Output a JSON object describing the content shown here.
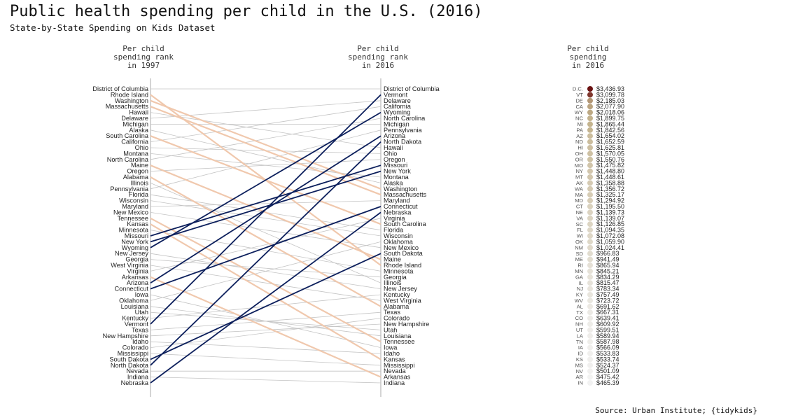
{
  "title": "Public health spending per child in the U.S. (2016)",
  "subtitle": "State-by-State Spending on Kids Dataset",
  "source": "Source: Urban Institute; {tidykids}",
  "headers": {
    "rank1997": [
      "Per child",
      "spending rank",
      "in 1997"
    ],
    "rank2016": [
      "Per child",
      "spending rank",
      "in 2016"
    ],
    "spend2016": [
      "Per child",
      "spending",
      "in 2016"
    ]
  },
  "colors": {
    "decline": "#f0c8ad",
    "rise": "#0c1f5c",
    "other": "#c4c4c4",
    "axis": "#aaaaaa",
    "dot_high": "#6b1212",
    "dot_mid": "#c1b089",
    "dot_low": "#f2f2f2"
  },
  "chart_data": {
    "type": "slope",
    "rank_1997": [
      "District of Columbia",
      "Rhode Island",
      "Washington",
      "Massachusetts",
      "Hawaii",
      "Delaware",
      "Michigan",
      "Alaska",
      "South Carolina",
      "California",
      "Ohio",
      "Montana",
      "North Carolina",
      "Maine",
      "Oregon",
      "Alabama",
      "Illinois",
      "Pennsylvania",
      "Florida",
      "Wisconsin",
      "Maryland",
      "New Mexico",
      "Tennessee",
      "Kansas",
      "Minnesota",
      "Missouri",
      "New York",
      "Wyoming",
      "New Jersey",
      "Georgia",
      "West Virginia",
      "Virginia",
      "Arkansas",
      "Arizona",
      "Connecticut",
      "Iowa",
      "Oklahoma",
      "Louisiana",
      "Utah",
      "Kentucky",
      "Vermont",
      "Texas",
      "New Hampshire",
      "Idaho",
      "Colorado",
      "Mississippi",
      "South Dakota",
      "North Dakota",
      "Nevada",
      "Indiana",
      "Nebraska"
    ],
    "rank_2016": [
      "District of Columbia",
      "Vermont",
      "Delaware",
      "California",
      "Wyoming",
      "North Carolina",
      "Michigan",
      "Pennsylvania",
      "Arizona",
      "North Dakota",
      "Hawaii",
      "Ohio",
      "Oregon",
      "Missouri",
      "New York",
      "Montana",
      "Alaska",
      "Washington",
      "Massachusetts",
      "Maryland",
      "Connecticut",
      "Nebraska",
      "Virginia",
      "South Carolina",
      "Florida",
      "Wisconsin",
      "Oklahoma",
      "New Mexico",
      "South Dakota",
      "Maine",
      "Rhode Island",
      "Minnesota",
      "Georgia",
      "Illinois",
      "New Jersey",
      "Kentucky",
      "West Virginia",
      "Alabama",
      "Texas",
      "Colorado",
      "New Hampshire",
      "Utah",
      "Louisiana",
      "Tennessee",
      "Iowa",
      "Idaho",
      "Kansas",
      "Mississippi",
      "Nevada",
      "Arkansas",
      "Indiana"
    ],
    "rising_states": [
      "Vermont",
      "Wyoming",
      "Arizona",
      "North Dakota",
      "Missouri",
      "New York",
      "Connecticut",
      "Nebraska",
      "South Dakota"
    ],
    "declining_states": [
      "Rhode Island",
      "Washington",
      "Massachusetts",
      "South Carolina",
      "Maine",
      "Alabama",
      "Kansas",
      "Tennessee",
      "Arkansas"
    ],
    "spending_2016": [
      {
        "abbr": "D.C.",
        "value": "$3,436.93",
        "amount": 3436.93
      },
      {
        "abbr": "VT",
        "value": "$3,099.78",
        "amount": 3099.78
      },
      {
        "abbr": "DE",
        "value": "$2,185.03",
        "amount": 2185.03
      },
      {
        "abbr": "CA",
        "value": "$2,077.90",
        "amount": 2077.9
      },
      {
        "abbr": "WY",
        "value": "$2,018.06",
        "amount": 2018.06
      },
      {
        "abbr": "NC",
        "value": "$1,899.75",
        "amount": 1899.75
      },
      {
        "abbr": "MI",
        "value": "$1,865.44",
        "amount": 1865.44
      },
      {
        "abbr": "PA",
        "value": "$1,842.56",
        "amount": 1842.56
      },
      {
        "abbr": "AZ",
        "value": "$1,654.02",
        "amount": 1654.02
      },
      {
        "abbr": "ND",
        "value": "$1,652.59",
        "amount": 1652.59
      },
      {
        "abbr": "HI",
        "value": "$1,625.81",
        "amount": 1625.81
      },
      {
        "abbr": "OH",
        "value": "$1,570.05",
        "amount": 1570.05
      },
      {
        "abbr": "OR",
        "value": "$1,550.76",
        "amount": 1550.76
      },
      {
        "abbr": "MO",
        "value": "$1,475.82",
        "amount": 1475.82
      },
      {
        "abbr": "NY",
        "value": "$1,448.80",
        "amount": 1448.8
      },
      {
        "abbr": "MT",
        "value": "$1,448.61",
        "amount": 1448.61
      },
      {
        "abbr": "AK",
        "value": "$1,358.88",
        "amount": 1358.88
      },
      {
        "abbr": "WA",
        "value": "$1,356.72",
        "amount": 1356.72
      },
      {
        "abbr": "MA",
        "value": "$1,325.17",
        "amount": 1325.17
      },
      {
        "abbr": "MD",
        "value": "$1,294.92",
        "amount": 1294.92
      },
      {
        "abbr": "CT",
        "value": "$1,195.50",
        "amount": 1195.5
      },
      {
        "abbr": "NE",
        "value": "$1,139.73",
        "amount": 1139.73
      },
      {
        "abbr": "VA",
        "value": "$1,139.07",
        "amount": 1139.07
      },
      {
        "abbr": "SC",
        "value": "$1,126.85",
        "amount": 1126.85
      },
      {
        "abbr": "FL",
        "value": "$1,094.35",
        "amount": 1094.35
      },
      {
        "abbr": "WI",
        "value": "$1,072.08",
        "amount": 1072.08
      },
      {
        "abbr": "OK",
        "value": "$1,059.90",
        "amount": 1059.9
      },
      {
        "abbr": "NM",
        "value": "$1,024.41",
        "amount": 1024.41
      },
      {
        "abbr": "SD",
        "value": "$966.83",
        "amount": 966.83
      },
      {
        "abbr": "ME",
        "value": "$941.49",
        "amount": 941.49
      },
      {
        "abbr": "RI",
        "value": "$865.94",
        "amount": 865.94
      },
      {
        "abbr": "MN",
        "value": "$845.21",
        "amount": 845.21
      },
      {
        "abbr": "GA",
        "value": "$834.29",
        "amount": 834.29
      },
      {
        "abbr": "IL",
        "value": "$815.47",
        "amount": 815.47
      },
      {
        "abbr": "NJ",
        "value": "$783.34",
        "amount": 783.34
      },
      {
        "abbr": "KY",
        "value": "$757.49",
        "amount": 757.49
      },
      {
        "abbr": "WV",
        "value": "$723.72",
        "amount": 723.72
      },
      {
        "abbr": "AL",
        "value": "$691.62",
        "amount": 691.62
      },
      {
        "abbr": "TX",
        "value": "$667.31",
        "amount": 667.31
      },
      {
        "abbr": "CO",
        "value": "$639.41",
        "amount": 639.41
      },
      {
        "abbr": "NH",
        "value": "$609.92",
        "amount": 609.92
      },
      {
        "abbr": "UT",
        "value": "$599.51",
        "amount": 599.51
      },
      {
        "abbr": "LA",
        "value": "$589.94",
        "amount": 589.94
      },
      {
        "abbr": "TN",
        "value": "$587.98",
        "amount": 587.98
      },
      {
        "abbr": "IA",
        "value": "$566.09",
        "amount": 566.09
      },
      {
        "abbr": "ID",
        "value": "$533.83",
        "amount": 533.83
      },
      {
        "abbr": "KS",
        "value": "$533.74",
        "amount": 533.74
      },
      {
        "abbr": "MS",
        "value": "$524.37",
        "amount": 524.37
      },
      {
        "abbr": "NV",
        "value": "$501.09",
        "amount": 501.09
      },
      {
        "abbr": "AR",
        "value": "$475.42",
        "amount": 475.42
      },
      {
        "abbr": "IN",
        "value": "$465.39",
        "amount": 465.39
      }
    ]
  }
}
